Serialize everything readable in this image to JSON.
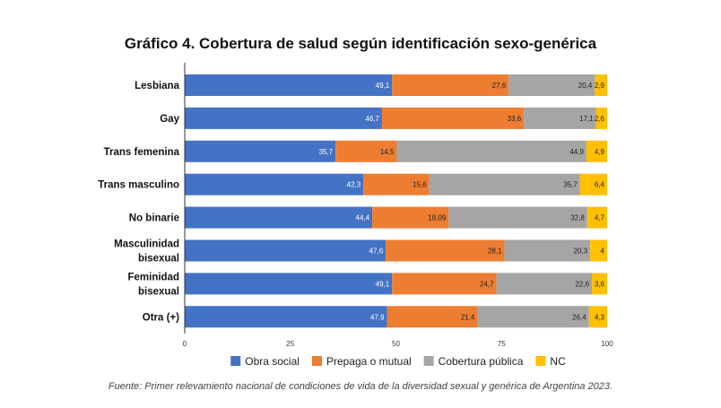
{
  "chart_data": {
    "type": "bar",
    "orientation": "horizontal",
    "stacked": true,
    "title": "Gráfico 4. Cobertura de salud según identificación sexo-genérica",
    "categories": [
      "Lesbiana",
      "Gay",
      "Trans femenina",
      "Trans masculino",
      "No binarie",
      "Masculinidad bisexual",
      "Feminidad bisexual",
      "Otra (+)"
    ],
    "category_lines": [
      [
        "Lesbiana"
      ],
      [
        "Gay"
      ],
      [
        "Trans femenina"
      ],
      [
        "Trans masculino"
      ],
      [
        "No binarie"
      ],
      [
        "Masculinidad",
        "bisexual"
      ],
      [
        "Feminidad",
        "bisexual"
      ],
      [
        "Otra (+)"
      ]
    ],
    "series": [
      {
        "name": "Obra social",
        "color": "#4472C4",
        "label_color": "#ffffff",
        "values": [
          49.1,
          46.7,
          35.7,
          42.3,
          44.4,
          47.6,
          49.1,
          47.9
        ],
        "labels": [
          "49,1",
          "46,7",
          "35,7",
          "42,3",
          "44,4",
          "47,6",
          "49,1",
          "47,9"
        ]
      },
      {
        "name": "Prepaga o mutual",
        "color": "#ED7D31",
        "label_color": "#222222",
        "values": [
          27.6,
          33.6,
          14.5,
          15.6,
          18.09,
          28.1,
          24.7,
          21.4
        ],
        "labels": [
          "27,6",
          "33,6",
          "14,5",
          "15,6",
          "18,09",
          "28,1",
          "24,7",
          "21,4"
        ]
      },
      {
        "name": "Cobertura pública",
        "color": "#A5A5A5",
        "label_color": "#222222",
        "values": [
          20.4,
          17.1,
          44.9,
          35.7,
          32.8,
          20.3,
          22.6,
          26.4
        ],
        "labels": [
          "20,4",
          "17,1",
          "44,9",
          "35,7",
          "32,8",
          "20,3",
          "22,6",
          "26,4"
        ]
      },
      {
        "name": "NC",
        "color": "#FFC000",
        "label_color": "#222222",
        "values": [
          2.9,
          2.6,
          4.9,
          6.4,
          4.7,
          4,
          3.6,
          4.3
        ],
        "labels": [
          "2,9",
          "2,6",
          "4,9",
          "6,4",
          "4,7",
          "4",
          "3,6",
          "4,3"
        ]
      }
    ],
    "xlim": [
      0,
      100
    ],
    "xticks": [
      "0",
      "25",
      "50",
      "75",
      "100"
    ],
    "xticks_values": [
      0,
      25,
      50,
      75,
      100
    ],
    "legend_position": "bottom",
    "grid": false
  },
  "source_note": "Fuente: Primer relevamiento nacional de condiciones de vida de la diversidad sexual y genérica de Argentina 2023."
}
